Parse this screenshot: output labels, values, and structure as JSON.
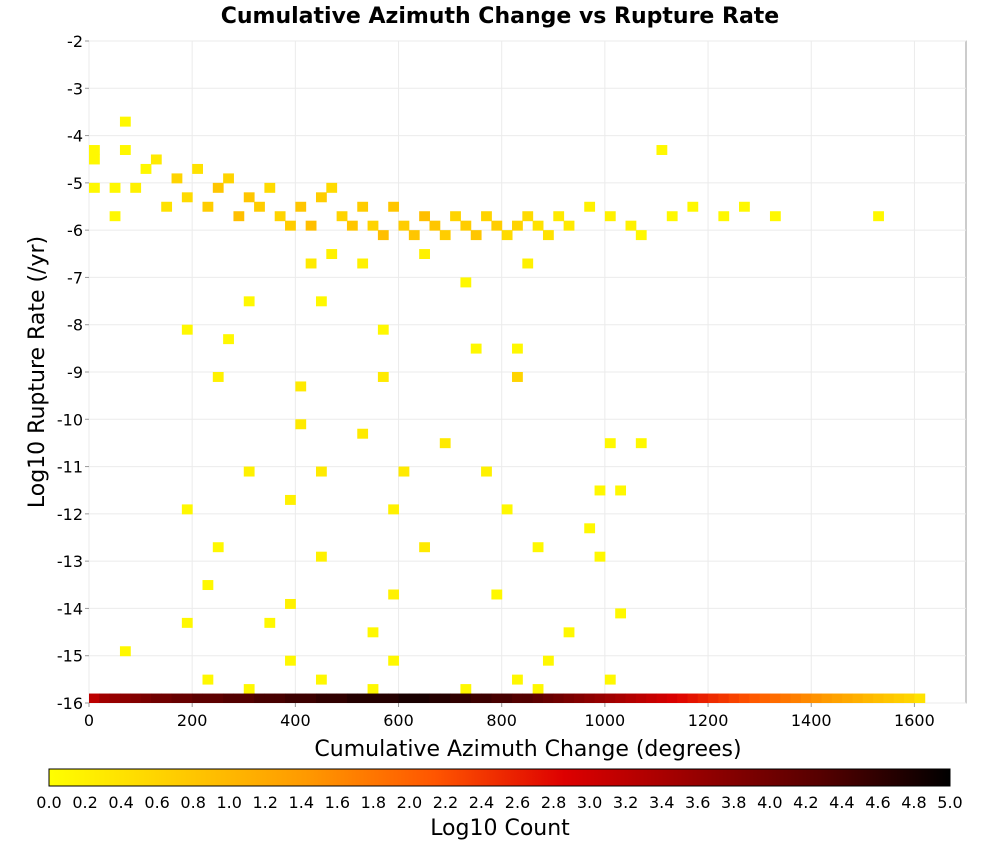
{
  "chart_data": {
    "type": "heatmap",
    "title": "Cumulative Azimuth Change vs Rupture Rate",
    "xlabel": "Cumulative Azimuth Change (degrees)",
    "ylabel": "Log10 Rupture Rate (/yr)",
    "xlim": [
      0,
      1700
    ],
    "ylim": [
      -16,
      -2
    ],
    "xticks": [
      "0",
      "200",
      "400",
      "600",
      "800",
      "1000",
      "1200",
      "1400",
      "1600"
    ],
    "yticks": [
      "-2",
      "-3",
      "-4",
      "-5",
      "-6",
      "-7",
      "-8",
      "-9",
      "-10",
      "-11",
      "-12",
      "-13",
      "-14",
      "-15",
      "-16"
    ],
    "grid": true,
    "colorbar": {
      "label": "Log10 Count",
      "range": [
        0.0,
        5.0
      ],
      "ticks": [
        "0.0",
        "0.2",
        "0.4",
        "0.6",
        "0.8",
        "1.0",
        "1.2",
        "1.4",
        "1.6",
        "1.8",
        "2.0",
        "2.2",
        "2.4",
        "2.6",
        "2.8",
        "3.0",
        "3.2",
        "3.4",
        "3.6",
        "3.8",
        "4.0",
        "4.2",
        "4.4",
        "4.6",
        "4.8",
        "5.0"
      ],
      "colors": [
        "#ffff00",
        "#ffcc00",
        "#ff9900",
        "#ff5500",
        "#dd0000",
        "#990000",
        "#550000",
        "#000000"
      ],
      "placement": "bottom"
    },
    "bin_width_x": 20,
    "bin_height_y": 0.2,
    "bins": [
      [
        10,
        -4.3,
        0.1
      ],
      [
        10,
        -4.5,
        0.1
      ],
      [
        10,
        -5.1,
        0.1
      ],
      [
        70,
        -3.7,
        0.1
      ],
      [
        70,
        -4.3,
        0.1
      ],
      [
        50,
        -5.1,
        0.1
      ],
      [
        50,
        -5.7,
        0.1
      ],
      [
        90,
        -5.1,
        0.2
      ],
      [
        110,
        -4.7,
        0.1
      ],
      [
        130,
        -4.5,
        0.3
      ],
      [
        150,
        -5.5,
        0.4
      ],
      [
        170,
        -4.9,
        0.6
      ],
      [
        190,
        -5.3,
        0.5
      ],
      [
        210,
        -4.7,
        0.4
      ],
      [
        230,
        -5.5,
        0.7
      ],
      [
        250,
        -5.1,
        0.8
      ],
      [
        270,
        -4.9,
        0.6
      ],
      [
        290,
        -5.7,
        0.9
      ],
      [
        310,
        -5.3,
        0.8
      ],
      [
        330,
        -5.5,
        0.7
      ],
      [
        350,
        -5.1,
        0.5
      ],
      [
        370,
        -5.7,
        0.6
      ],
      [
        390,
        -5.9,
        0.7
      ],
      [
        410,
        -5.5,
        0.8
      ],
      [
        430,
        -5.9,
        0.9
      ],
      [
        450,
        -5.3,
        0.7
      ],
      [
        470,
        -5.1,
        0.5
      ],
      [
        490,
        -5.7,
        0.6
      ],
      [
        510,
        -5.9,
        0.8
      ],
      [
        530,
        -5.5,
        0.7
      ],
      [
        550,
        -5.9,
        0.6
      ],
      [
        570,
        -6.1,
        0.9
      ],
      [
        590,
        -5.5,
        0.8
      ],
      [
        610,
        -5.9,
        0.7
      ],
      [
        630,
        -6.1,
        0.8
      ],
      [
        650,
        -5.7,
        0.9
      ],
      [
        670,
        -5.9,
        0.8
      ],
      [
        690,
        -6.1,
        0.7
      ],
      [
        710,
        -5.7,
        0.6
      ],
      [
        730,
        -5.9,
        0.7
      ],
      [
        750,
        -6.1,
        0.8
      ],
      [
        770,
        -5.7,
        0.6
      ],
      [
        790,
        -5.9,
        0.7
      ],
      [
        810,
        -6.1,
        0.5
      ],
      [
        830,
        -5.9,
        0.6
      ],
      [
        850,
        -5.7,
        0.5
      ],
      [
        870,
        -5.9,
        0.4
      ],
      [
        890,
        -6.1,
        0.4
      ],
      [
        910,
        -5.7,
        0.3
      ],
      [
        930,
        -5.9,
        0.3
      ],
      [
        970,
        -5.5,
        0.2
      ],
      [
        1010,
        -5.7,
        0.2
      ],
      [
        1050,
        -5.9,
        0.2
      ],
      [
        1070,
        -6.1,
        0.1
      ],
      [
        1110,
        -4.3,
        0.1
      ],
      [
        1130,
        -5.7,
        0.1
      ],
      [
        1170,
        -5.5,
        0.1
      ],
      [
        1230,
        -5.7,
        0.1
      ],
      [
        1270,
        -5.5,
        0.1
      ],
      [
        1330,
        -5.7,
        0.1
      ],
      [
        1530,
        -5.7,
        0.1
      ],
      [
        430,
        -6.7,
        0.3
      ],
      [
        470,
        -6.5,
        0.2
      ],
      [
        530,
        -6.7,
        0.2
      ],
      [
        650,
        -6.5,
        0.2
      ],
      [
        730,
        -7.1,
        0.1
      ],
      [
        850,
        -6.7,
        0.2
      ],
      [
        310,
        -7.5,
        0.1
      ],
      [
        450,
        -7.5,
        0.1
      ],
      [
        190,
        -8.1,
        0.1
      ],
      [
        270,
        -8.3,
        0.1
      ],
      [
        570,
        -8.1,
        0.1
      ],
      [
        750,
        -8.5,
        0.1
      ],
      [
        830,
        -8.5,
        0.1
      ],
      [
        250,
        -9.1,
        0.2
      ],
      [
        410,
        -9.3,
        0.3
      ],
      [
        570,
        -9.1,
        0.3
      ],
      [
        830,
        -9.1,
        0.6
      ],
      [
        410,
        -10.1,
        0.3
      ],
      [
        530,
        -10.3,
        0.3
      ],
      [
        690,
        -10.5,
        0.3
      ],
      [
        1010,
        -10.5,
        0.1
      ],
      [
        1070,
        -10.5,
        0.1
      ],
      [
        310,
        -11.1,
        0.2
      ],
      [
        450,
        -11.1,
        0.3
      ],
      [
        610,
        -11.1,
        0.3
      ],
      [
        770,
        -11.1,
        0.2
      ],
      [
        990,
        -11.5,
        0.1
      ],
      [
        1030,
        -11.5,
        0.1
      ],
      [
        190,
        -11.9,
        0.1
      ],
      [
        390,
        -11.7,
        0.2
      ],
      [
        590,
        -11.9,
        0.2
      ],
      [
        810,
        -11.9,
        0.1
      ],
      [
        970,
        -12.3,
        0.1
      ],
      [
        250,
        -12.7,
        0.1
      ],
      [
        450,
        -12.9,
        0.2
      ],
      [
        650,
        -12.7,
        0.3
      ],
      [
        870,
        -12.7,
        0.1
      ],
      [
        990,
        -12.9,
        0.1
      ],
      [
        230,
        -13.5,
        0.1
      ],
      [
        390,
        -13.9,
        0.2
      ],
      [
        590,
        -13.7,
        0.2
      ],
      [
        790,
        -13.7,
        0.1
      ],
      [
        1030,
        -14.1,
        0.1
      ],
      [
        190,
        -14.3,
        0.1
      ],
      [
        350,
        -14.3,
        0.1
      ],
      [
        550,
        -14.5,
        0.1
      ],
      [
        930,
        -14.5,
        0.1
      ],
      [
        70,
        -14.9,
        0.1
      ],
      [
        390,
        -15.1,
        0.1
      ],
      [
        590,
        -15.1,
        0.1
      ],
      [
        890,
        -15.1,
        0.1
      ],
      [
        230,
        -15.5,
        0.1
      ],
      [
        450,
        -15.5,
        0.1
      ],
      [
        830,
        -15.5,
        0.1
      ],
      [
        1010,
        -15.5,
        0.1
      ],
      [
        310,
        -15.7,
        0.1
      ],
      [
        550,
        -15.7,
        0.1
      ],
      [
        730,
        -15.7,
        0.1
      ],
      [
        870,
        -15.7,
        0.1
      ]
    ],
    "bottom_row": {
      "y": -15.9,
      "values": [
        [
          10,
          3.2
        ],
        [
          30,
          3.5
        ],
        [
          50,
          3.6
        ],
        [
          70,
          3.7
        ],
        [
          90,
          3.8
        ],
        [
          110,
          3.9
        ],
        [
          130,
          4.0
        ],
        [
          150,
          4.0
        ],
        [
          170,
          4.1
        ],
        [
          190,
          4.1
        ],
        [
          210,
          4.2
        ],
        [
          230,
          4.2
        ],
        [
          250,
          4.2
        ],
        [
          270,
          4.3
        ],
        [
          290,
          4.3
        ],
        [
          310,
          4.3
        ],
        [
          330,
          4.4
        ],
        [
          350,
          4.4
        ],
        [
          370,
          4.4
        ],
        [
          390,
          4.5
        ],
        [
          410,
          4.5
        ],
        [
          430,
          4.5
        ],
        [
          450,
          4.6
        ],
        [
          470,
          4.6
        ],
        [
          490,
          4.6
        ],
        [
          510,
          4.7
        ],
        [
          530,
          4.7
        ],
        [
          550,
          4.7
        ],
        [
          570,
          4.7
        ],
        [
          590,
          4.7
        ],
        [
          610,
          4.8
        ],
        [
          630,
          4.8
        ],
        [
          650,
          4.8
        ],
        [
          670,
          4.7
        ],
        [
          690,
          4.7
        ],
        [
          710,
          4.6
        ],
        [
          730,
          4.6
        ],
        [
          750,
          4.5
        ],
        [
          770,
          4.5
        ],
        [
          790,
          4.4
        ],
        [
          810,
          4.4
        ],
        [
          830,
          4.3
        ],
        [
          850,
          4.3
        ],
        [
          870,
          4.2
        ],
        [
          890,
          4.1
        ],
        [
          910,
          4.0
        ],
        [
          930,
          3.9
        ],
        [
          950,
          3.8
        ],
        [
          970,
          3.7
        ],
        [
          990,
          3.6
        ],
        [
          1010,
          3.5
        ],
        [
          1030,
          3.4
        ],
        [
          1050,
          3.3
        ],
        [
          1070,
          3.2
        ],
        [
          1090,
          3.1
        ],
        [
          1110,
          3.0
        ],
        [
          1130,
          2.9
        ],
        [
          1150,
          2.8
        ],
        [
          1170,
          2.7
        ],
        [
          1190,
          2.6
        ],
        [
          1210,
          2.5
        ],
        [
          1230,
          2.4
        ],
        [
          1250,
          2.3
        ],
        [
          1270,
          2.2
        ],
        [
          1290,
          2.1
        ],
        [
          1310,
          2.0
        ],
        [
          1330,
          1.9
        ],
        [
          1350,
          1.8
        ],
        [
          1370,
          1.7
        ],
        [
          1390,
          1.6
        ],
        [
          1410,
          1.5
        ],
        [
          1430,
          1.4
        ],
        [
          1450,
          1.3
        ],
        [
          1470,
          1.2
        ],
        [
          1490,
          1.1
        ],
        [
          1510,
          1.0
        ],
        [
          1530,
          0.9
        ],
        [
          1550,
          0.8
        ],
        [
          1570,
          0.7
        ],
        [
          1590,
          0.6
        ],
        [
          1610,
          0.4
        ]
      ]
    }
  }
}
